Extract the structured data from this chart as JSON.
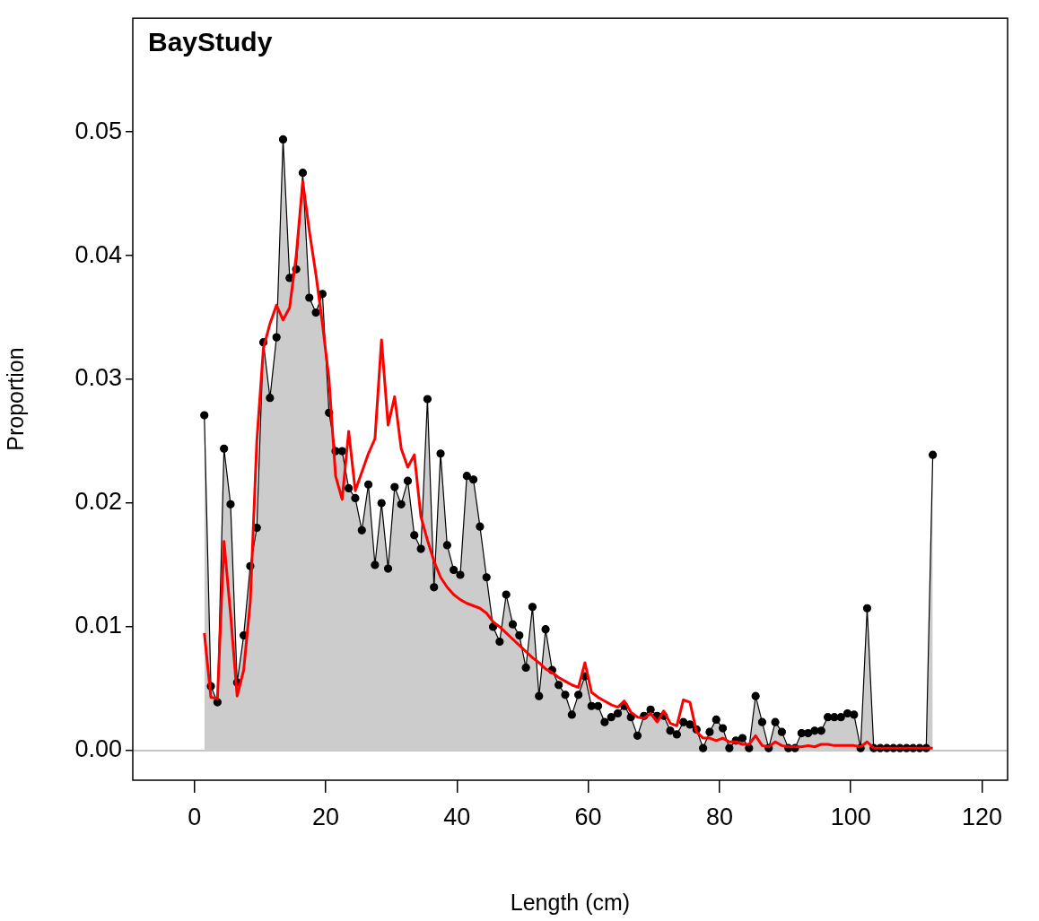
{
  "chart_data": {
    "type": "area",
    "title": "BayStudy",
    "xlabel": "Length (cm)",
    "ylabel": "Proportion",
    "x": [
      1.5,
      2.5,
      3.5,
      4.5,
      5.5,
      6.5,
      7.5,
      8.5,
      9.5,
      10.5,
      11.5,
      12.5,
      13.5,
      14.5,
      15.5,
      16.5,
      17.5,
      18.5,
      19.5,
      20.5,
      21.5,
      22.5,
      23.5,
      24.5,
      25.5,
      26.5,
      27.5,
      28.5,
      29.5,
      30.5,
      31.5,
      32.5,
      33.5,
      34.5,
      35.5,
      36.5,
      37.5,
      38.5,
      39.5,
      40.5,
      41.5,
      42.5,
      43.5,
      44.5,
      45.5,
      46.5,
      47.5,
      48.5,
      49.5,
      50.5,
      51.5,
      52.5,
      53.5,
      54.5,
      55.5,
      56.5,
      57.5,
      58.5,
      59.5,
      60.5,
      61.5,
      62.5,
      63.5,
      64.5,
      65.5,
      66.5,
      67.5,
      68.5,
      69.5,
      70.5,
      71.5,
      72.5,
      73.5,
      74.5,
      75.5,
      76.5,
      77.5,
      78.5,
      79.5,
      80.5,
      81.5,
      82.5,
      83.5,
      84.5,
      85.5,
      86.5,
      87.5,
      88.5,
      89.5,
      90.5,
      91.5,
      92.5,
      93.5,
      94.5,
      95.5,
      96.5,
      97.5,
      98.5,
      99.5,
      100.5,
      101.5,
      102.5,
      103.5,
      104.5,
      105.5,
      106.5,
      107.5,
      108.5,
      109.5,
      110.5,
      111.5,
      112.5
    ],
    "series": [
      {
        "color": "#000000",
        "values": [
          0.0271,
          0.0052,
          0.0039,
          0.0244,
          0.0199,
          0.0055,
          0.0093,
          0.0149,
          0.018,
          0.033,
          0.0285,
          0.0334,
          0.0494,
          0.0382,
          0.0389,
          0.0467,
          0.0366,
          0.0354,
          0.0369,
          0.0273,
          0.0242,
          0.0242,
          0.0212,
          0.0204,
          0.0178,
          0.0215,
          0.015,
          0.02,
          0.0147,
          0.0213,
          0.0199,
          0.0218,
          0.0174,
          0.0163,
          0.0284,
          0.0132,
          0.024,
          0.0166,
          0.0146,
          0.0142,
          0.0222,
          0.0219,
          0.0181,
          0.014,
          0.01,
          0.0088,
          0.0126,
          0.0102,
          0.0093,
          0.0067,
          0.0116,
          0.0044,
          0.0098,
          0.0065,
          0.0053,
          0.0045,
          0.0029,
          0.0045,
          0.006,
          0.0036,
          0.0036,
          0.0023,
          0.0027,
          0.003,
          0.0036,
          0.0027,
          0.0012,
          0.0028,
          0.0033,
          0.0028,
          0.0028,
          0.0016,
          0.0013,
          0.0023,
          0.0021,
          0.0017,
          0.0002,
          0.0015,
          0.0025,
          0.0018,
          0.0002,
          0.0008,
          0.001,
          0.0002,
          0.0044,
          0.0023,
          0.0002,
          0.0023,
          0.0015,
          0.0002,
          0.0002,
          0.0014,
          0.0014,
          0.0016,
          0.0016,
          0.0027,
          0.0027,
          0.0027,
          0.003,
          0.0029,
          0.0002,
          0.0115,
          0.0002,
          0.0002,
          0.0002,
          0.0002,
          0.0002,
          0.0002,
          0.0002,
          0.0002,
          0.0002,
          0.0239
        ]
      },
      {
        "type": "line",
        "color": "#ff0000",
        "marker": "none",
        "values": [
          0.0095,
          0.0043,
          0.0042,
          0.0169,
          0.011,
          0.0044,
          0.0065,
          0.012,
          0.025,
          0.0325,
          0.0345,
          0.036,
          0.0348,
          0.0358,
          0.04,
          0.046,
          0.042,
          0.0385,
          0.0345,
          0.03,
          0.0222,
          0.0203,
          0.0258,
          0.021,
          0.0225,
          0.024,
          0.0252,
          0.0332,
          0.0263,
          0.0286,
          0.0244,
          0.0229,
          0.0239,
          0.0189,
          0.017,
          0.0153,
          0.014,
          0.0132,
          0.0126,
          0.0122,
          0.0119,
          0.0117,
          0.0115,
          0.0111,
          0.0104,
          0.01,
          0.0095,
          0.009,
          0.0085,
          0.008,
          0.0075,
          0.0071,
          0.0066,
          0.0063,
          0.0059,
          0.0056,
          0.0053,
          0.0051,
          0.0071,
          0.0047,
          0.0043,
          0.004,
          0.0037,
          0.0035,
          0.004,
          0.0031,
          0.0027,
          0.0026,
          0.003,
          0.0023,
          0.0032,
          0.0022,
          0.002,
          0.0041,
          0.0039,
          0.0015,
          0.001,
          0.001,
          0.0008,
          0.001,
          0.0007,
          0.0007,
          0.0005,
          0.0005,
          0.0012,
          0.0004,
          0.0003,
          0.0007,
          0.0004,
          0.0003,
          0.0003,
          0.0003,
          0.0004,
          0.0003,
          0.0005,
          0.0005,
          0.0004,
          0.0004,
          0.0004,
          0.0004,
          0.0003,
          0.0007,
          0.0002,
          0.0002,
          0.0002,
          0.0002,
          0.0002,
          0.0002,
          0.0002,
          0.0002,
          0.0002,
          0.0002
        ]
      }
    ],
    "xlim": [
      -9.4,
      123.9
    ],
    "xticks": [
      0,
      20,
      40,
      60,
      80,
      100,
      120
    ],
    "ylim": [
      -0.0024,
      0.0592
    ],
    "yticks": [
      {
        "value": 0,
        "label": "0.00"
      },
      0.01,
      0.02,
      0.03,
      0.04,
      0.05
    ],
    "ref_lines": [
      {
        "axis": "y",
        "value": 0,
        "color": "#b0b0b0"
      }
    ],
    "marker": "circle",
    "grid": false,
    "legend": false
  }
}
